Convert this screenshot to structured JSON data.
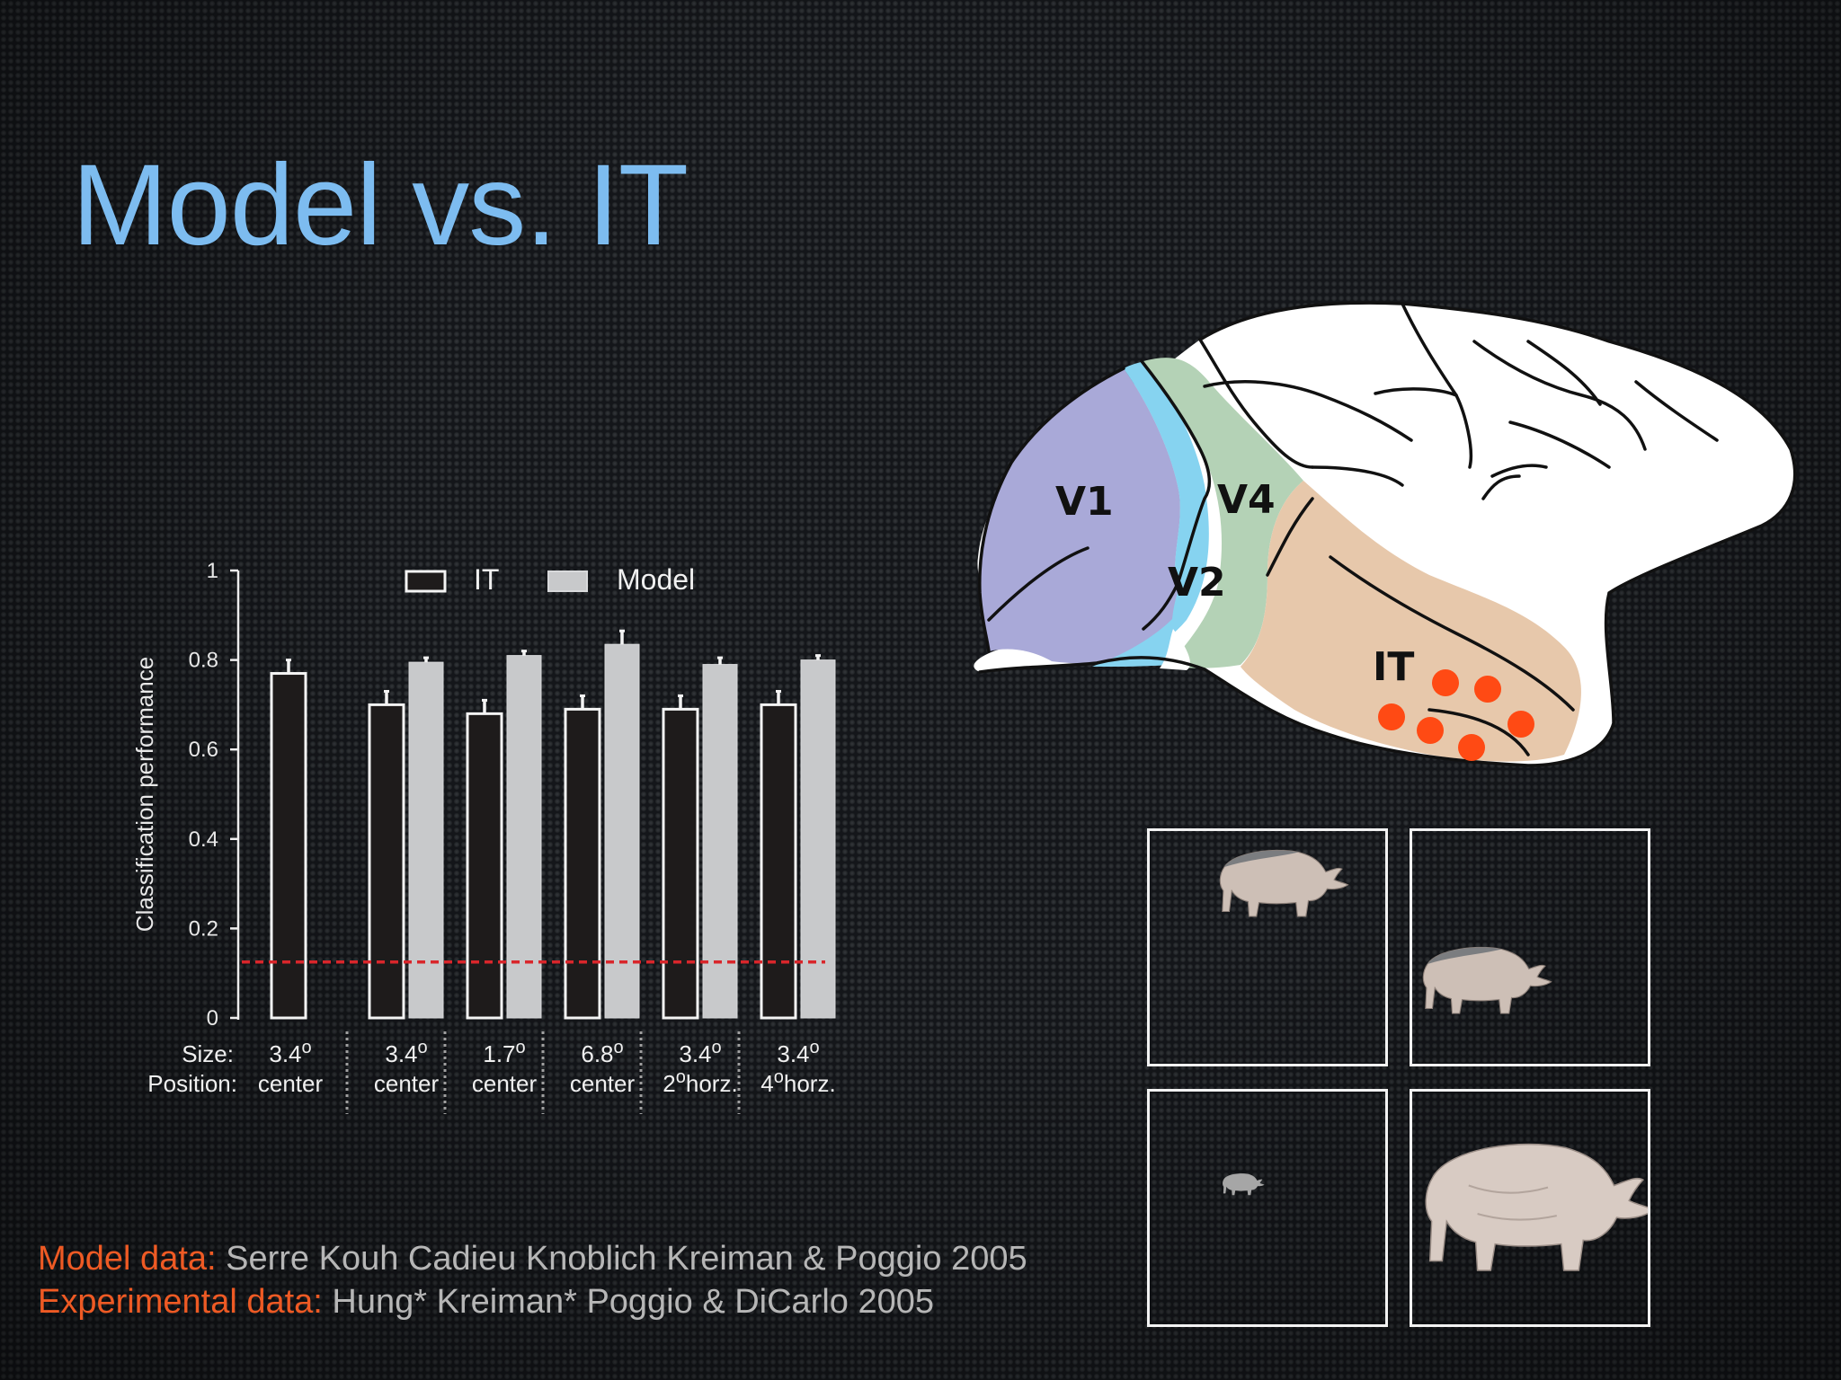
{
  "slide": {
    "title": "Model vs. IT"
  },
  "chart_data": {
    "type": "bar",
    "ylabel": "Classification performance",
    "ylim": [
      0,
      1
    ],
    "yticks": [
      "0",
      "0.2",
      "0.4",
      "0.6",
      "0.8",
      "1"
    ],
    "row_labels": [
      "Size:",
      "Position:"
    ],
    "categories": [
      {
        "size": "3.4",
        "position": "center",
        "size_sup": "o",
        "pos_sup": "",
        "pos_text": "center"
      },
      {
        "size": "3.4",
        "position": "center",
        "size_sup": "o",
        "pos_sup": "",
        "pos_text": "center"
      },
      {
        "size": "1.7",
        "position": "center",
        "size_sup": "o",
        "pos_sup": "",
        "pos_text": "center"
      },
      {
        "size": "6.8",
        "position": "center",
        "size_sup": "o",
        "pos_sup": "",
        "pos_text": "center"
      },
      {
        "size": "3.4",
        "position": "2 horz.",
        "size_sup": "o",
        "pos_lead": "2",
        "pos_sup": "o",
        "pos_text": "horz."
      },
      {
        "size": "3.4",
        "position": "4 horz.",
        "size_sup": "o",
        "pos_lead": "4",
        "pos_sup": "o",
        "pos_text": "horz."
      }
    ],
    "series": [
      {
        "name": "IT",
        "color": "#1e1b1b",
        "values": [
          0.77,
          0.7,
          0.68,
          0.69,
          0.69,
          0.7
        ],
        "errors": [
          0.03,
          0.03,
          0.03,
          0.03,
          0.03,
          0.03
        ]
      },
      {
        "name": "Model",
        "color": "#c8c9cb",
        "values": [
          null,
          0.795,
          0.81,
          0.835,
          0.79,
          0.8
        ],
        "errors": [
          null,
          0.01,
          0.01,
          0.03,
          0.015,
          0.01
        ]
      }
    ],
    "chance_level": 0.125,
    "chance_color": "#d9262b",
    "legend_position": "top"
  },
  "brain": {
    "area_labels": [
      "V1",
      "V4",
      "V2",
      "IT"
    ],
    "colors": {
      "v1": "#a9a9d8",
      "v2": "#86d3f0",
      "v4": "#b4d2b6",
      "it": "#e7c8ab",
      "cortex": "#ffffff",
      "recording_site": "#ff4a14"
    },
    "recording_sites": 6
  },
  "stimuli": {
    "panels": 4,
    "object": "rhino",
    "variants": [
      "3.4 deg, 4 deg horz.",
      "3.4 deg, 2 deg horz.",
      "1.7 deg center",
      "6.8 deg center"
    ]
  },
  "credits": {
    "model_label": "Model data:",
    "model_text": "Serre Kouh Cadieu Knoblich Kreiman & Poggio 2005",
    "exp_label": "Experimental data:",
    "exp_text": "Hung* Kreiman* Poggio & DiCarlo 2005"
  }
}
